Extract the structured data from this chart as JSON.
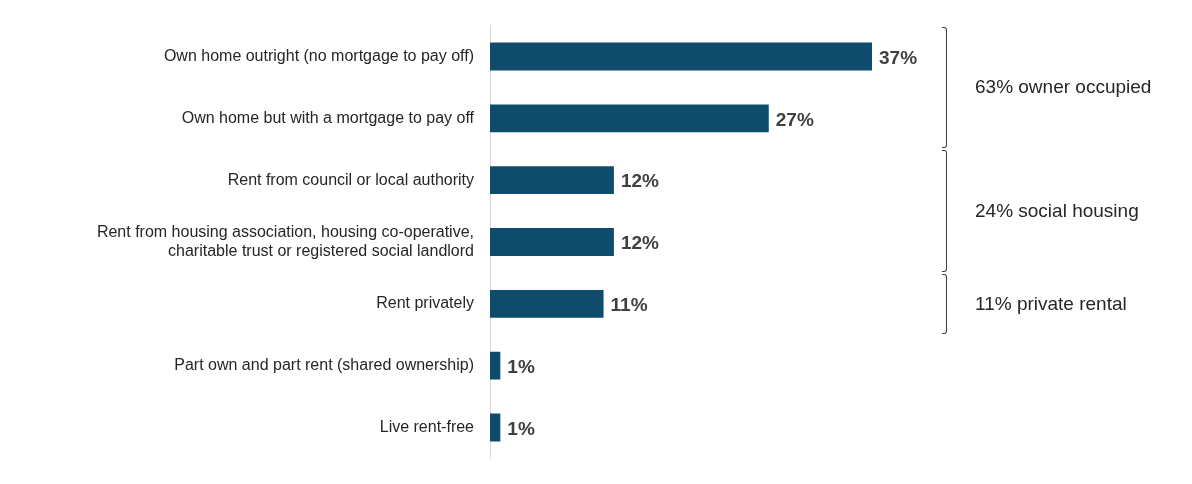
{
  "chart_data": {
    "type": "bar",
    "orientation": "horizontal",
    "categories": [
      "Own home outright (no mortgage to pay off)",
      "Own home but with a mortgage to pay off",
      "Rent from council or local authority",
      "Rent from housing association, housing co-operative, charitable trust or registered social landlord",
      "Rent privately",
      "Part own and part rent (shared ownership)",
      "Live rent-free"
    ],
    "values": [
      37,
      27,
      12,
      12,
      11,
      1,
      1
    ],
    "value_labels": [
      "37%",
      "27%",
      "12%",
      "12%",
      "11%",
      "1%",
      "1%"
    ],
    "color": "#0f4c6b",
    "annotations": [
      "63% owner occupied",
      "24% social housing",
      "11% private rental"
    ],
    "legend": false
  }
}
